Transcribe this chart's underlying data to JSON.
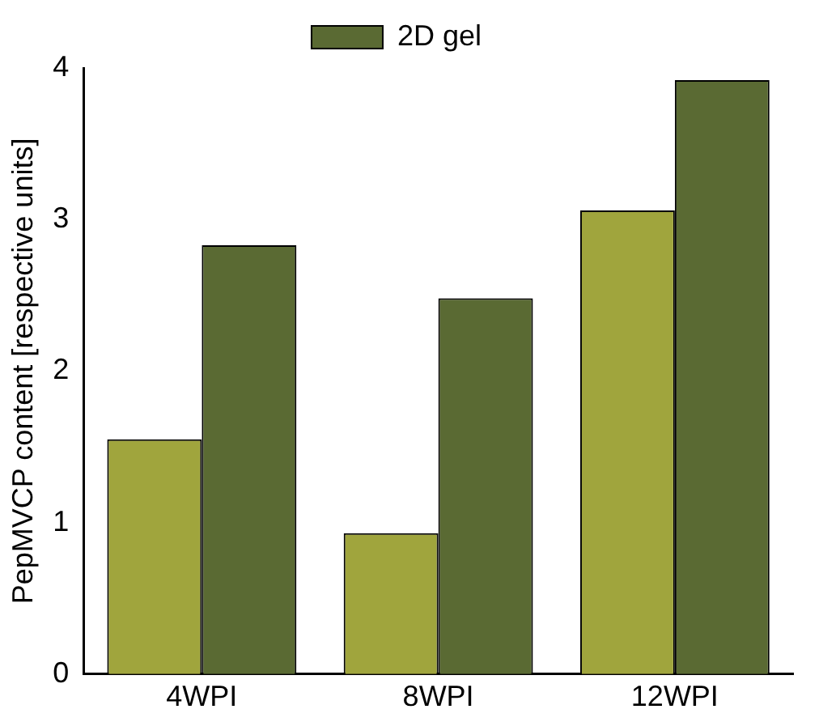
{
  "chart_data": {
    "type": "bar",
    "ylabel": "PepMVCP content [respective units]",
    "categories": [
      "4WPI",
      "8WPI",
      "12WPI"
    ],
    "series": [
      {
        "color": "#a0a53d",
        "values": [
          1.55,
          0.93,
          3.06
        ]
      },
      {
        "name": "2D gel",
        "color": "#5a6a33",
        "values": [
          2.83,
          2.48,
          3.92
        ]
      }
    ],
    "ylim": [
      0,
      4
    ],
    "yticks": [
      0,
      1,
      2,
      3,
      4
    ],
    "grid": false,
    "legend": "top"
  }
}
